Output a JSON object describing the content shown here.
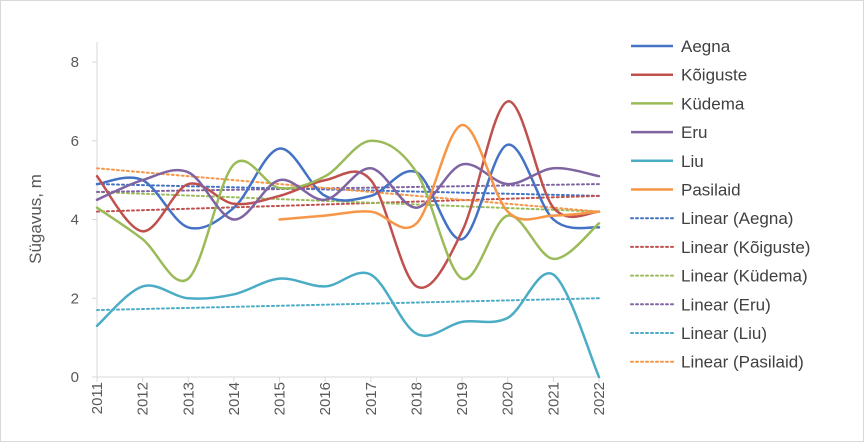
{
  "chart_data": {
    "type": "line",
    "ylabel": "Sügavus, m",
    "xlabel": "",
    "ylim": [
      0,
      8
    ],
    "yticks": [
      "0",
      "2",
      "4",
      "6",
      "8"
    ],
    "grid": false,
    "legend_position": "right",
    "x": [
      "2011",
      "2012",
      "2013",
      "2014",
      "2015",
      "2016",
      "2017",
      "2018",
      "2019",
      "2020",
      "2021",
      "2022"
    ],
    "series": [
      {
        "name": "Aegna",
        "color": "#4472c4",
        "values": [
          4.9,
          5.0,
          3.8,
          4.3,
          5.8,
          4.6,
          4.6,
          5.2,
          3.5,
          5.9,
          4.0,
          3.8
        ]
      },
      {
        "name": "Kõiguste",
        "color": "#c0504d",
        "values": [
          5.1,
          3.7,
          4.9,
          4.4,
          4.6,
          5.0,
          5.0,
          2.3,
          3.7,
          7.0,
          4.3,
          4.2
        ]
      },
      {
        "name": "Küdema",
        "color": "#9bbb59",
        "values": [
          4.3,
          3.5,
          2.5,
          5.4,
          4.8,
          5.1,
          6.0,
          5.2,
          2.5,
          4.1,
          3.0,
          3.9
        ]
      },
      {
        "name": "Eru",
        "color": "#8064a2",
        "values": [
          4.5,
          5.0,
          5.2,
          4.0,
          5.0,
          4.5,
          5.3,
          4.3,
          5.4,
          4.9,
          5.3,
          5.1
        ]
      },
      {
        "name": "Liu",
        "color": "#4bacc6",
        "values": [
          1.3,
          2.3,
          2.0,
          2.1,
          2.5,
          2.3,
          2.6,
          1.1,
          1.4,
          1.5,
          2.6,
          0.0
        ]
      },
      {
        "name": "Pasilaid",
        "color": "#f79646",
        "values": [
          null,
          null,
          null,
          null,
          4.0,
          4.1,
          4.2,
          3.9,
          6.4,
          4.2,
          4.1,
          4.2
        ]
      }
    ],
    "trendlines": [
      {
        "name": "Linear (Aegna)",
        "color": "#4472c4",
        "start": 4.9,
        "end": 4.6
      },
      {
        "name": "Linear (Kõiguste)",
        "color": "#c0504d",
        "start": 4.2,
        "end": 4.6
      },
      {
        "name": "Linear (Küdema)",
        "color": "#9bbb59",
        "start": 4.7,
        "end": 4.2
      },
      {
        "name": "Linear (Eru)",
        "color": "#8064a2",
        "start": 4.7,
        "end": 4.9
      },
      {
        "name": "Linear (Liu)",
        "color": "#4bacc6",
        "start": 1.7,
        "end": 2.0
      },
      {
        "name": "Linear (Pasilaid)",
        "color": "#f79646",
        "start": 5.3,
        "end": 4.2
      }
    ]
  }
}
